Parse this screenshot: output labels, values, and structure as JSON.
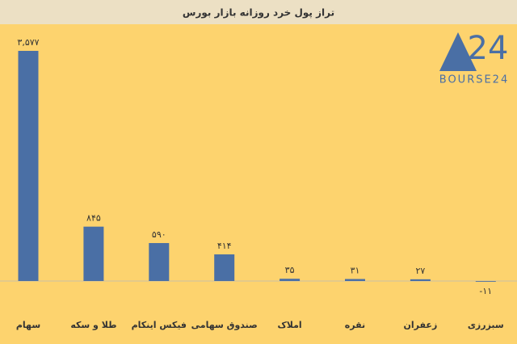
{
  "chart_data": {
    "type": "bar",
    "title": "تراز پول خرد روزانه بازار بورس",
    "categories": [
      "سهام",
      "طلا و سکه",
      "فیکس اینکام",
      "صندوق سهامی",
      "املاک",
      "نقره",
      "زعفران",
      "سبزرزی"
    ],
    "values": [
      3577,
      845,
      590,
      414,
      35,
      31,
      27,
      -11
    ],
    "value_labels": [
      "۳,۵۷۷",
      "۸۴۵",
      "۵۹۰",
      "۴۱۴",
      "۳۵",
      "۳۱",
      "۲۷",
      "-۱۱"
    ],
    "color": "#4a6fa5"
  },
  "logo": {
    "mark": "24",
    "name": "BOURSE24"
  }
}
